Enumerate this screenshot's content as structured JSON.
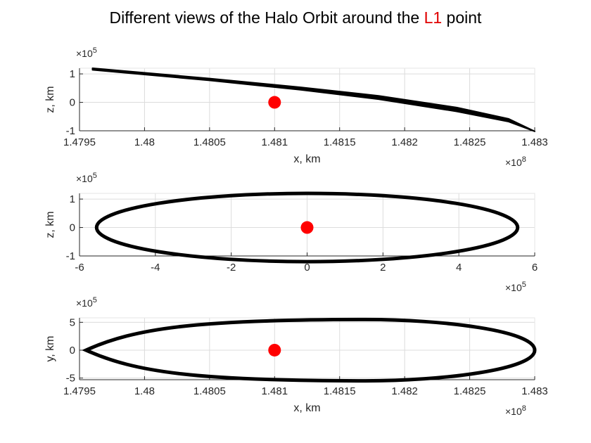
{
  "title": {
    "prefix": "Different views of the Halo Orbit around the ",
    "highlight": "L1",
    "suffix": " point"
  },
  "colors": {
    "orbit": "#000000",
    "point": "#ff0000",
    "highlight": "#e00000",
    "grid": "#dcdcdc",
    "axis": "#262626"
  },
  "chart_data": [
    {
      "type": "line",
      "xlabel": "x, km",
      "ylabel": "z, km",
      "x_multiplier": "×10^8",
      "y_multiplier": "×10^5",
      "xlim": [
        147950000.0,
        148300000.0
      ],
      "ylim": [
        -100000.0,
        120000.0
      ],
      "xticks": [
        147950000.0,
        148000000.0,
        148050000.0,
        148100000.0,
        148150000.0,
        148200000.0,
        148250000.0,
        148300000.0
      ],
      "xticklabels": [
        "1.4795",
        "1.48",
        "1.4805",
        "1.481",
        "1.4815",
        "1.482",
        "1.4825",
        "1.483"
      ],
      "yticks": [
        -100000.0,
        0,
        100000.0
      ],
      "yticklabels": [
        "-1",
        "0",
        "1"
      ],
      "grid": true,
      "series": [
        {
          "kind": "band",
          "x": [
            147960000.0,
            148050000.0,
            148120000.0,
            148180000.0,
            148240000.0,
            148280000.0,
            148300000.0
          ],
          "y_upper": [
            120000.0,
            84000.0,
            53000.0,
            23000.0,
            -18000.0,
            -58000.0,
            -102000.0
          ],
          "y_lower": [
            114000.0,
            77000.0,
            44000.0,
            11000.0,
            -32000.0,
            -68000.0,
            -102000.0
          ]
        },
        {
          "kind": "point",
          "x": [
            148100000.0
          ],
          "y": [
            0
          ]
        }
      ]
    },
    {
      "type": "line",
      "xlabel": "",
      "ylabel": "z, km",
      "x_multiplier": "×10^5",
      "y_multiplier": "×10^5",
      "xlim": [
        -600000.0,
        600000.0
      ],
      "ylim": [
        -100000.0,
        120000.0
      ],
      "xticks": [
        -600000.0,
        -400000.0,
        -200000.0,
        0,
        200000.0,
        400000.0,
        600000.0
      ],
      "xticklabels": [
        "-6",
        "-4",
        "-2",
        "0",
        "2",
        "4",
        "6"
      ],
      "yticks": [
        -100000.0,
        0,
        100000.0
      ],
      "yticklabels": [
        "-1",
        "0",
        "1"
      ],
      "grid": true,
      "series": [
        {
          "kind": "ellipse",
          "cx": 0,
          "cy": 0,
          "rx": 555000.0,
          "ry": 120000.0
        },
        {
          "kind": "point",
          "x": [
            0
          ],
          "y": [
            0
          ]
        }
      ]
    },
    {
      "type": "line",
      "xlabel": "x, km",
      "ylabel": "y, km",
      "x_multiplier": "×10^8",
      "y_multiplier": "×10^5",
      "xlim": [
        147950000.0,
        148300000.0
      ],
      "ylim": [
        -5.3,
        5.8
      ],
      "xticks": [
        147950000.0,
        148000000.0,
        148050000.0,
        148100000.0,
        148150000.0,
        148200000.0,
        148250000.0,
        148300000.0
      ],
      "xticklabels": [
        "1.4795",
        "1.48",
        "1.4805",
        "1.481",
        "1.4815",
        "1.482",
        "1.4825",
        "1.483"
      ],
      "yticks": [
        -5,
        0,
        5
      ],
      "yticklabels": [
        "-5",
        "0",
        "5"
      ],
      "grid": true,
      "series": [
        {
          "kind": "egg",
          "xmin": 147955000.0,
          "xmax": 148300000.0,
          "xpeak": 148170000.0,
          "ymax": 5.5,
          "ymin": -5.5
        },
        {
          "kind": "point",
          "x": [
            148100000.0
          ],
          "y": [
            0
          ]
        }
      ]
    }
  ]
}
